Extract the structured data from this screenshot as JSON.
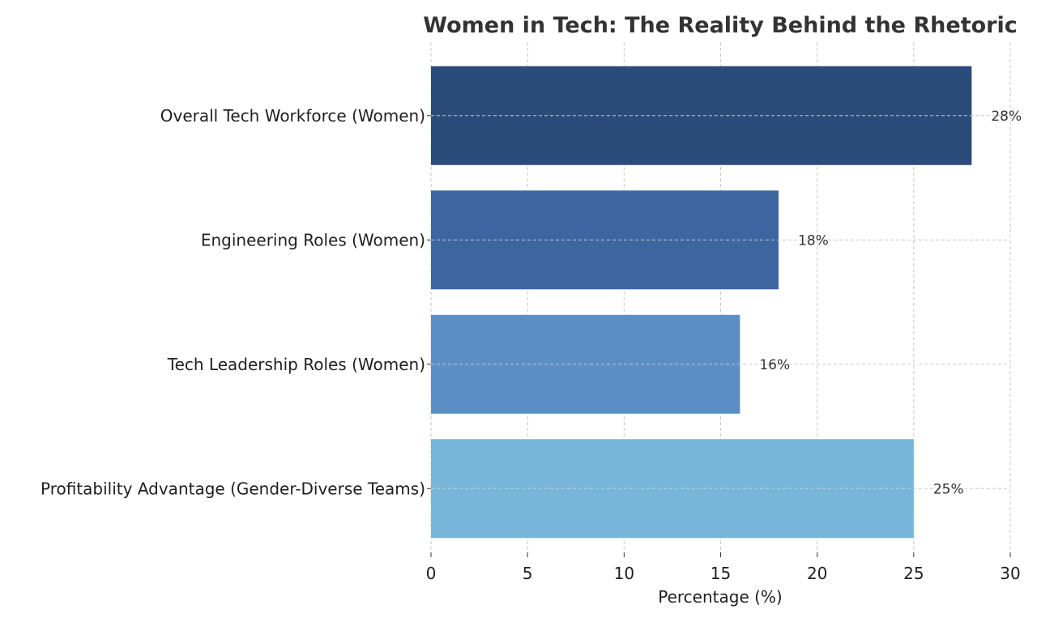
{
  "chart_data": {
    "type": "bar",
    "orientation": "horizontal",
    "title": "Women in Tech: The Reality Behind the Rhetoric",
    "xlabel": "Percentage (%)",
    "ylabel": "",
    "xlim": [
      0,
      30
    ],
    "xticks": [
      0,
      5,
      10,
      15,
      20,
      25,
      30
    ],
    "grid": true,
    "categories": [
      "Overall Tech Workforce (Women)",
      "Engineering Roles (Women)",
      "Tech Leadership Roles (Women)",
      "Profitability Advantage (Gender-Diverse Teams)"
    ],
    "values": [
      28,
      18,
      16,
      25
    ],
    "data_labels": [
      "28%",
      "18%",
      "16%",
      "25%"
    ],
    "colors": [
      "#2b4b7b",
      "#3d65a0",
      "#5b8ec4",
      "#78b5db"
    ]
  }
}
